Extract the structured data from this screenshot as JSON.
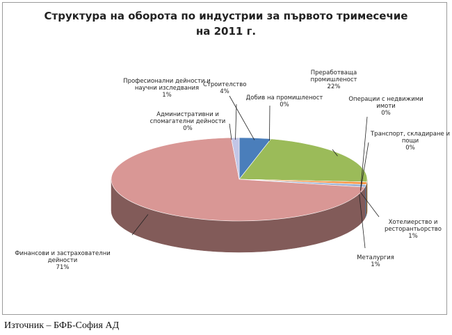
{
  "chart_data": {
    "type": "pie",
    "title": "Структура на оборота по индустрии за първото тримесечие на 2011 г.",
    "categories": [
      "Строителство",
      "Добив на промишленост",
      "Преработваща промишленост",
      "Операции с недвижими имоти",
      "Транспорт, складиране и пощи",
      "Хотелиерство и ресторантьорство",
      "Металургия",
      "Финансови и застрахователни дейности",
      "Административни и спомагателни дейности",
      "Професионални дейности и научни изследвания"
    ],
    "values": [
      4,
      0,
      22,
      0,
      0,
      1,
      1,
      71,
      0,
      1
    ],
    "value_labels": [
      "4%",
      "0%",
      "22%",
      "0%",
      "0%",
      "1%",
      "1%",
      "71%",
      "0%",
      "1%"
    ],
    "colors": [
      "#4a7ebb",
      "#a0302c",
      "#9bbb59",
      "#8064a2",
      "#4bacc6",
      "#f79646",
      "#9db3d6",
      "#d99795",
      "#b7acd0",
      "#c3c6e6"
    ]
  },
  "source": "Източник – БФБ-София АД"
}
